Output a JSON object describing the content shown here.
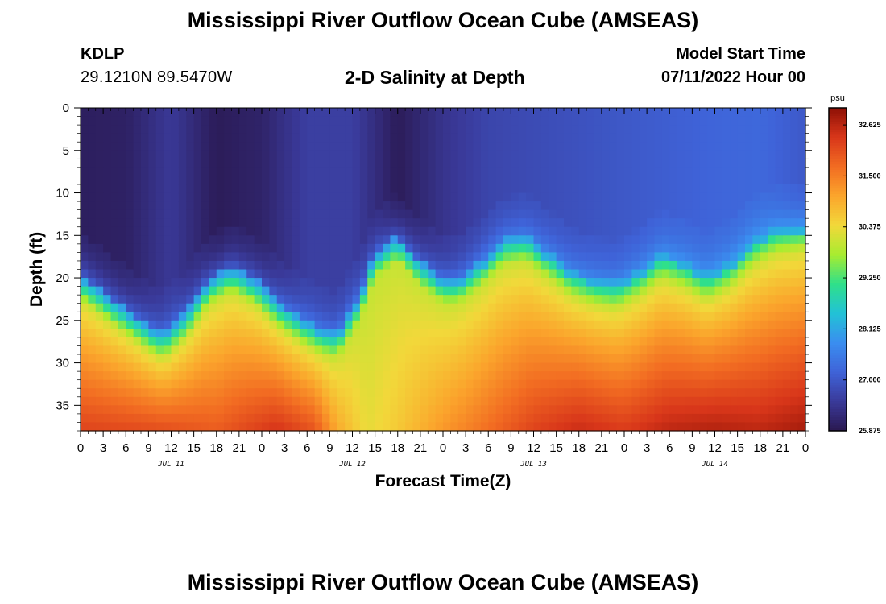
{
  "header": {
    "title": "Mississippi River Outflow Ocean Cube (AMSEAS)",
    "station_id": "KDLP",
    "station_coords": "29.1210N  89.5470W",
    "subtitle": "2-D Salinity at Depth",
    "model_start_label": "Model Start Time",
    "model_start_value": "07/11/2022 Hour 00"
  },
  "footer": {
    "title": "Mississippi River Outflow Ocean Cube (AMSEAS)"
  },
  "chart_data": {
    "type": "heatmap",
    "title": "2-D Salinity at Depth",
    "xlabel": "Forecast Time(Z)",
    "ylabel": "Depth (ft)",
    "x_hours_range": [
      0,
      96
    ],
    "ylim": [
      0,
      38
    ],
    "y_inverted": true,
    "x_ticks": [
      "0",
      "3",
      "6",
      "9",
      "12",
      "15",
      "18",
      "21",
      "0",
      "3",
      "6",
      "9",
      "12",
      "15",
      "18",
      "21",
      "0",
      "3",
      "6",
      "9",
      "12",
      "15",
      "18",
      "21",
      "0",
      "3",
      "6",
      "9",
      "12",
      "15",
      "18",
      "21",
      "0"
    ],
    "day_labels": [
      {
        "label": "JUL 11",
        "hour": 12
      },
      {
        "label": "JUL 12",
        "hour": 36
      },
      {
        "label": "JUL 13",
        "hour": 60
      },
      {
        "label": "JUL 14",
        "hour": 84
      }
    ],
    "y_ticks": [
      0,
      5,
      10,
      15,
      20,
      25,
      30,
      35
    ],
    "colorbar": {
      "unit": "psu",
      "min": 25.875,
      "max": 33.0,
      "ticks": [
        "25.875",
        "27.000",
        "28.125",
        "29.250",
        "30.375",
        "31.500",
        "32.625"
      ],
      "colors": [
        "#2a1850",
        "#3a3a9a",
        "#3f63d8",
        "#3a8ef0",
        "#22c2d6",
        "#2fe08a",
        "#a8ec30",
        "#f2d83a",
        "#fba52c",
        "#f26c22",
        "#d8361a",
        "#8e1005"
      ]
    },
    "interface_depth_ft": [
      {
        "hour": 0,
        "depth": 22.5
      },
      {
        "hour": 3,
        "depth": 24.5
      },
      {
        "hour": 6,
        "depth": 26.5
      },
      {
        "hour": 9,
        "depth": 28.5
      },
      {
        "hour": 11,
        "depth": 29.5
      },
      {
        "hour": 14,
        "depth": 27
      },
      {
        "hour": 17,
        "depth": 23
      },
      {
        "hour": 20,
        "depth": 21.5
      },
      {
        "hour": 23,
        "depth": 23
      },
      {
        "hour": 26,
        "depth": 25.5
      },
      {
        "hour": 29,
        "depth": 27.5
      },
      {
        "hour": 32,
        "depth": 29
      },
      {
        "hour": 34,
        "depth": 29.5
      },
      {
        "hour": 37,
        "depth": 25
      },
      {
        "hour": 39,
        "depth": 20
      },
      {
        "hour": 42,
        "depth": 18
      },
      {
        "hour": 45,
        "depth": 21
      },
      {
        "hour": 48,
        "depth": 23
      },
      {
        "hour": 50,
        "depth": 23
      },
      {
        "hour": 53,
        "depth": 21
      },
      {
        "hour": 56,
        "depth": 18.5
      },
      {
        "hour": 59,
        "depth": 18
      },
      {
        "hour": 62,
        "depth": 20
      },
      {
        "hour": 65,
        "depth": 22
      },
      {
        "hour": 68,
        "depth": 23
      },
      {
        "hour": 71,
        "depth": 23.5
      },
      {
        "hour": 74,
        "depth": 22
      },
      {
        "hour": 77,
        "depth": 20
      },
      {
        "hour": 80,
        "depth": 21
      },
      {
        "hour": 83,
        "depth": 22.5
      },
      {
        "hour": 86,
        "depth": 21
      },
      {
        "hour": 89,
        "depth": 18.5
      },
      {
        "hour": 92,
        "depth": 17
      },
      {
        "hour": 96,
        "depth": 16.5
      }
    ],
    "surface_salinity_psu": [
      {
        "hour": 0,
        "value": 26.0
      },
      {
        "hour": 6,
        "value": 26.05
      },
      {
        "hour": 12,
        "value": 26.5
      },
      {
        "hour": 18,
        "value": 25.95
      },
      {
        "hour": 24,
        "value": 26.1
      },
      {
        "hour": 30,
        "value": 26.6
      },
      {
        "hour": 36,
        "value": 26.6
      },
      {
        "hour": 42,
        "value": 25.95
      },
      {
        "hour": 48,
        "value": 26.4
      },
      {
        "hour": 54,
        "value": 26.7
      },
      {
        "hour": 60,
        "value": 26.8
      },
      {
        "hour": 66,
        "value": 26.9
      },
      {
        "hour": 72,
        "value": 27.0
      },
      {
        "hour": 78,
        "value": 27.1
      },
      {
        "hour": 84,
        "value": 27.2
      },
      {
        "hour": 90,
        "value": 27.25
      },
      {
        "hour": 96,
        "value": 27.0
      }
    ],
    "bottom_salinity_psu": [
      {
        "hour": 0,
        "value": 32.2
      },
      {
        "hour": 10,
        "value": 32.1
      },
      {
        "hour": 18,
        "value": 31.9
      },
      {
        "hour": 26,
        "value": 32.4
      },
      {
        "hour": 31,
        "value": 32.0
      },
      {
        "hour": 34,
        "value": 31.0
      },
      {
        "hour": 38,
        "value": 30.3
      },
      {
        "hour": 42,
        "value": 30.6
      },
      {
        "hour": 48,
        "value": 31.2
      },
      {
        "hour": 54,
        "value": 31.7
      },
      {
        "hour": 60,
        "value": 32.2
      },
      {
        "hour": 66,
        "value": 32.5
      },
      {
        "hour": 72,
        "value": 32.3
      },
      {
        "hour": 78,
        "value": 32.6
      },
      {
        "hour": 84,
        "value": 32.7
      },
      {
        "hour": 90,
        "value": 32.6
      },
      {
        "hour": 96,
        "value": 32.8
      }
    ]
  }
}
